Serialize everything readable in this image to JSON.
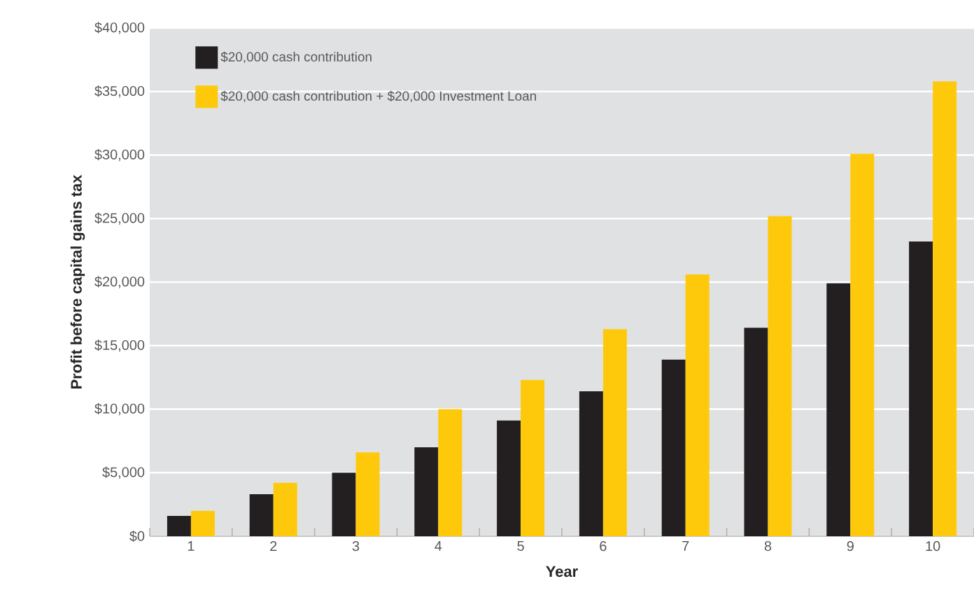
{
  "chart_data": {
    "type": "bar",
    "xlabel": "Year",
    "ylabel": "Profit before capital gains tax",
    "categories": [
      "1",
      "2",
      "3",
      "4",
      "5",
      "6",
      "7",
      "8",
      "9",
      "10"
    ],
    "series": [
      {
        "name": "$20,000 cash contribution",
        "color": "#231f20",
        "values": [
          1600,
          3300,
          5000,
          7000,
          9100,
          11400,
          13900,
          16400,
          19900,
          23200
        ]
      },
      {
        "name": "$20,000 cash contribution + $20,000 Investment Loan",
        "color": "#ffc90b",
        "values": [
          2000,
          4200,
          6600,
          10000,
          12300,
          16300,
          20600,
          25200,
          30100,
          35800
        ]
      }
    ],
    "ylim": [
      0,
      40000
    ],
    "yticks": [
      {
        "value": 0,
        "label": "$0"
      },
      {
        "value": 5000,
        "label": "$5,000"
      },
      {
        "value": 10000,
        "label": "$10,000"
      },
      {
        "value": 15000,
        "label": "$15,000"
      },
      {
        "value": 20000,
        "label": "$20,000"
      },
      {
        "value": 25000,
        "label": "$25,000"
      },
      {
        "value": 30000,
        "label": "$30,000"
      },
      {
        "value": 35000,
        "label": "$35,000"
      },
      {
        "value": 40000,
        "label": "$40,000"
      }
    ],
    "grid": "y",
    "legend": "top left"
  }
}
